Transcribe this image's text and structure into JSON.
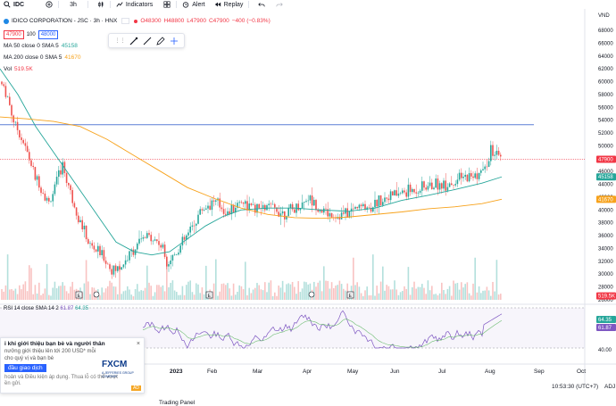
{
  "toolbar": {
    "symbol": "IDC",
    "interval": "3h",
    "indicators_label": "Indicators",
    "alert_label": "Alert",
    "replay_label": "Replay"
  },
  "legend": {
    "title": "IDICO CORPORATION - JSC · 3h · HNX",
    "o": "O48300",
    "h": "H48800",
    "l": "L47900",
    "c": "C47900",
    "change": "−400 (−0.83%)",
    "sell_price": "47900",
    "qty": "100",
    "buy_price": "48000",
    "ma50": "MA 50 close 0 SMA 5",
    "ma50_val": "45158",
    "ma200": "MA 200 close 0 SMA 5",
    "ma200_val": "41670",
    "vol_label": "Vol",
    "vol_val": "519.5K"
  },
  "rsi_legend": {
    "label": "RSI 14 close SMA 14 2",
    "v1": "61.87",
    "v2": "64.35"
  },
  "price_axis": {
    "unit": "VND",
    "ticks": [
      "68000",
      "66000",
      "64000",
      "62000",
      "60000",
      "58000",
      "56000",
      "54000",
      "52000",
      "50000",
      "46000",
      "44000",
      "42000",
      "40000",
      "38000",
      "36000",
      "34000",
      "32000",
      "30000",
      "28000",
      "26000"
    ],
    "tag_last": "47900",
    "tag_ma50": "45158",
    "tag_ma200": "41670",
    "tag_vol": "519.5K"
  },
  "rsi_axis": {
    "tag_a": "64.35",
    "tag_b": "61.87",
    "tick40": "40.00"
  },
  "time_axis": [
    "2023",
    "Feb",
    "Mar",
    "Apr",
    "May",
    "Jun",
    "Jul",
    "Aug",
    "Sep",
    "Oct"
  ],
  "footer": {
    "clock": "10:53:30 (UTC+7)",
    "adj": "ADJ",
    "trading_panel": "Trading Panel"
  },
  "popup": {
    "title": "i khi giới thiệu bạn bè và người thân",
    "body1": "nưởng giới thiệu lên tới 200 USD* mỗi",
    "body2": "cho quý vị và bạn bè",
    "button": "đầu giao dịch",
    "terms1": "hoản và Điều kiện áp dụng. Thua lỗ có thể vượt",
    "terms2": "ền gửi.",
    "brand": "FXCM",
    "brand_sub": "A JEFFERIES GROUP COMPANY",
    "close": "×",
    "ad": "AD"
  },
  "colors": {
    "ma50": "#26a69a",
    "ma200": "#f7a21b",
    "bull": "#26a69a",
    "bear": "#ef5350",
    "rsi": "#7e57c2",
    "hline": "#5b7fd6",
    "last": "#f23645"
  }
}
